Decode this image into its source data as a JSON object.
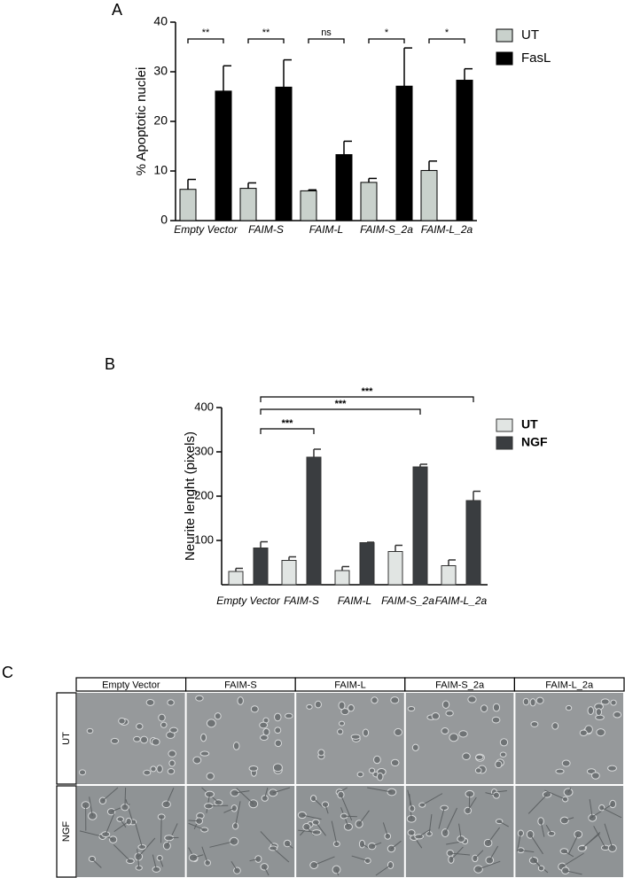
{
  "panel_labels": [
    "A",
    "B",
    "C"
  ],
  "chart_data": [
    {
      "type": "bar",
      "ylabel": "% Apoptotic nuclei",
      "categories": [
        "Empty Vector",
        "FAIM-S",
        "FAIM-L",
        "FAIM-S_2a",
        "FAIM-L_2a"
      ],
      "series": [
        {
          "name": "UT",
          "color": "#c9d1cc",
          "values": [
            6.3,
            6.5,
            6.0,
            7.7,
            10.1
          ],
          "errors": [
            2.0,
            1.1,
            0.2,
            0.8,
            1.9
          ]
        },
        {
          "name": "FasL",
          "color": "#000000",
          "values": [
            26.1,
            26.9,
            13.3,
            27.1,
            28.3
          ],
          "errors": [
            5.1,
            5.5,
            2.7,
            7.7,
            2.3
          ]
        }
      ],
      "annotations": [
        "**",
        "**",
        "ns",
        "*",
        "*"
      ],
      "ylim": [
        0,
        40
      ],
      "yticks": [
        0,
        10,
        20,
        30,
        40
      ]
    },
    {
      "type": "bar",
      "ylabel": "Neurite lenght (pixels)",
      "categories": [
        "Empty Vector",
        "FAIM-S",
        "FAIM-L",
        "FAIM-S_2a",
        "FAIM-L_2a"
      ],
      "series": [
        {
          "name": "UT",
          "color": "#e1e5e3",
          "values": [
            30,
            55,
            32,
            75,
            43
          ],
          "errors": [
            7,
            8,
            9,
            14,
            13
          ]
        },
        {
          "name": "NGF",
          "color": "#3a3d40",
          "values": [
            83,
            288,
            95,
            266,
            190
          ],
          "errors": [
            14,
            18,
            1,
            6,
            21
          ]
        }
      ],
      "annotations": [
        "***",
        "***",
        "***"
      ],
      "ylim": [
        0,
        400
      ],
      "yticks": [
        100,
        200,
        300,
        400
      ]
    }
  ],
  "image_grid": {
    "columns": [
      "Empty Vector",
      "FAIM-S",
      "FAIM-L",
      "FAIM-S_2a",
      "FAIM-L_2a"
    ],
    "rows": [
      "UT",
      "NGF"
    ]
  }
}
